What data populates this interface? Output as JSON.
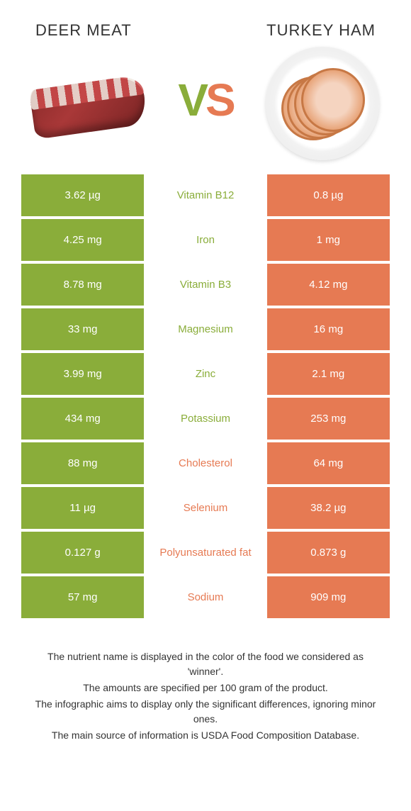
{
  "colors": {
    "left_bg": "#8aad3a",
    "right_bg": "#e67a53",
    "left_text": "#8aad3a",
    "right_text": "#e67a53",
    "white": "#ffffff"
  },
  "header": {
    "left_title": "DEER MEAT",
    "right_title": "TURKEY HAM",
    "vs_v": "V",
    "vs_s": "S"
  },
  "rows": [
    {
      "left": "3.62 µg",
      "label": "Vitamin B12",
      "right": "0.8 µg",
      "winner": "left"
    },
    {
      "left": "4.25 mg",
      "label": "Iron",
      "right": "1 mg",
      "winner": "left"
    },
    {
      "left": "8.78 mg",
      "label": "Vitamin B3",
      "right": "4.12 mg",
      "winner": "left"
    },
    {
      "left": "33 mg",
      "label": "Magnesium",
      "right": "16 mg",
      "winner": "left"
    },
    {
      "left": "3.99 mg",
      "label": "Zinc",
      "right": "2.1 mg",
      "winner": "left"
    },
    {
      "left": "434 mg",
      "label": "Potassium",
      "right": "253 mg",
      "winner": "left"
    },
    {
      "left": "88 mg",
      "label": "Cholesterol",
      "right": "64 mg",
      "winner": "right"
    },
    {
      "left": "11 µg",
      "label": "Selenium",
      "right": "38.2 µg",
      "winner": "right"
    },
    {
      "left": "0.127 g",
      "label": "Polyunsaturated fat",
      "right": "0.873 g",
      "winner": "right"
    },
    {
      "left": "57 mg",
      "label": "Sodium",
      "right": "909 mg",
      "winner": "right"
    }
  ],
  "footer": {
    "line1": "The nutrient name is displayed in the color of the food we considered as 'winner'.",
    "line2": "The amounts are specified per 100 gram of the product.",
    "line3": "The infographic aims to display only the significant differences, ignoring minor ones.",
    "line4": "The main source of information is USDA Food Composition Database."
  }
}
